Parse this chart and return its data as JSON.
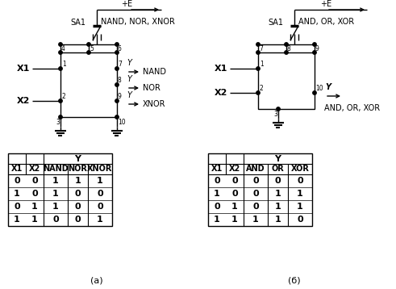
{
  "background_color": "#ffffff",
  "table_a": {
    "headers": [
      "X1",
      "X2",
      "NAND",
      "NOR",
      "XNOR"
    ],
    "Y_header": "Y",
    "rows": [
      [
        0,
        0,
        1,
        1,
        1
      ],
      [
        1,
        0,
        1,
        0,
        0
      ],
      [
        0,
        1,
        1,
        0,
        0
      ],
      [
        1,
        1,
        0,
        0,
        1
      ]
    ]
  },
  "table_b": {
    "headers": [
      "X1",
      "X2",
      "AND",
      "OR",
      "XOR"
    ],
    "Y_header": "Y",
    "rows": [
      [
        0,
        0,
        0,
        0,
        0
      ],
      [
        1,
        0,
        0,
        1,
        1
      ],
      [
        0,
        1,
        0,
        1,
        1
      ],
      [
        1,
        1,
        1,
        1,
        0
      ]
    ]
  }
}
